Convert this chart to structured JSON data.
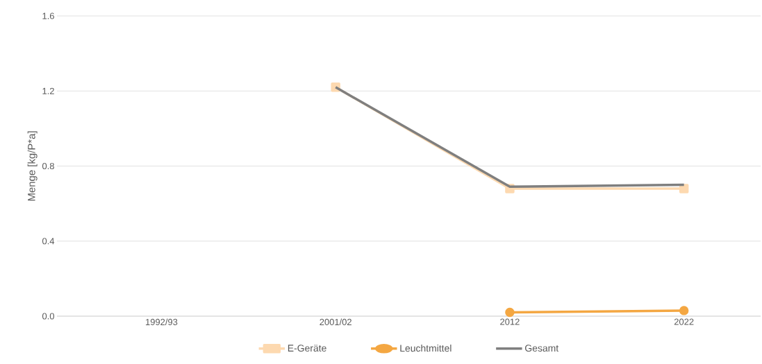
{
  "chart_data": {
    "type": "line",
    "ylabel": "Menge [kg/P*a]",
    "categories": [
      "1992/93",
      "2001/02",
      "2012",
      "2022"
    ],
    "ylim": [
      0,
      1.6
    ],
    "yticks": [
      {
        "value": 0,
        "label": "0.0"
      },
      {
        "value": 0.4,
        "label": "0.4"
      },
      {
        "value": 0.8,
        "label": "0.8"
      },
      {
        "value": 1.2,
        "label": "1.2"
      },
      {
        "value": 1.6,
        "label": "1.6"
      }
    ],
    "grid": "y",
    "legend": "bottom",
    "line_style": "solid",
    "series": [
      {
        "name": "E-Geräte",
        "color": "#fdd9b0",
        "marker": "square",
        "values": [
          null,
          1.22,
          0.68,
          0.68
        ]
      },
      {
        "name": "Leuchtmittel",
        "color": "#f4a742",
        "marker": "circle",
        "values": [
          null,
          null,
          0.02,
          0.03
        ]
      },
      {
        "name": "Gesamt",
        "color": "#7f7f7f",
        "marker": "none",
        "values": [
          null,
          1.22,
          0.69,
          0.7
        ]
      }
    ]
  }
}
